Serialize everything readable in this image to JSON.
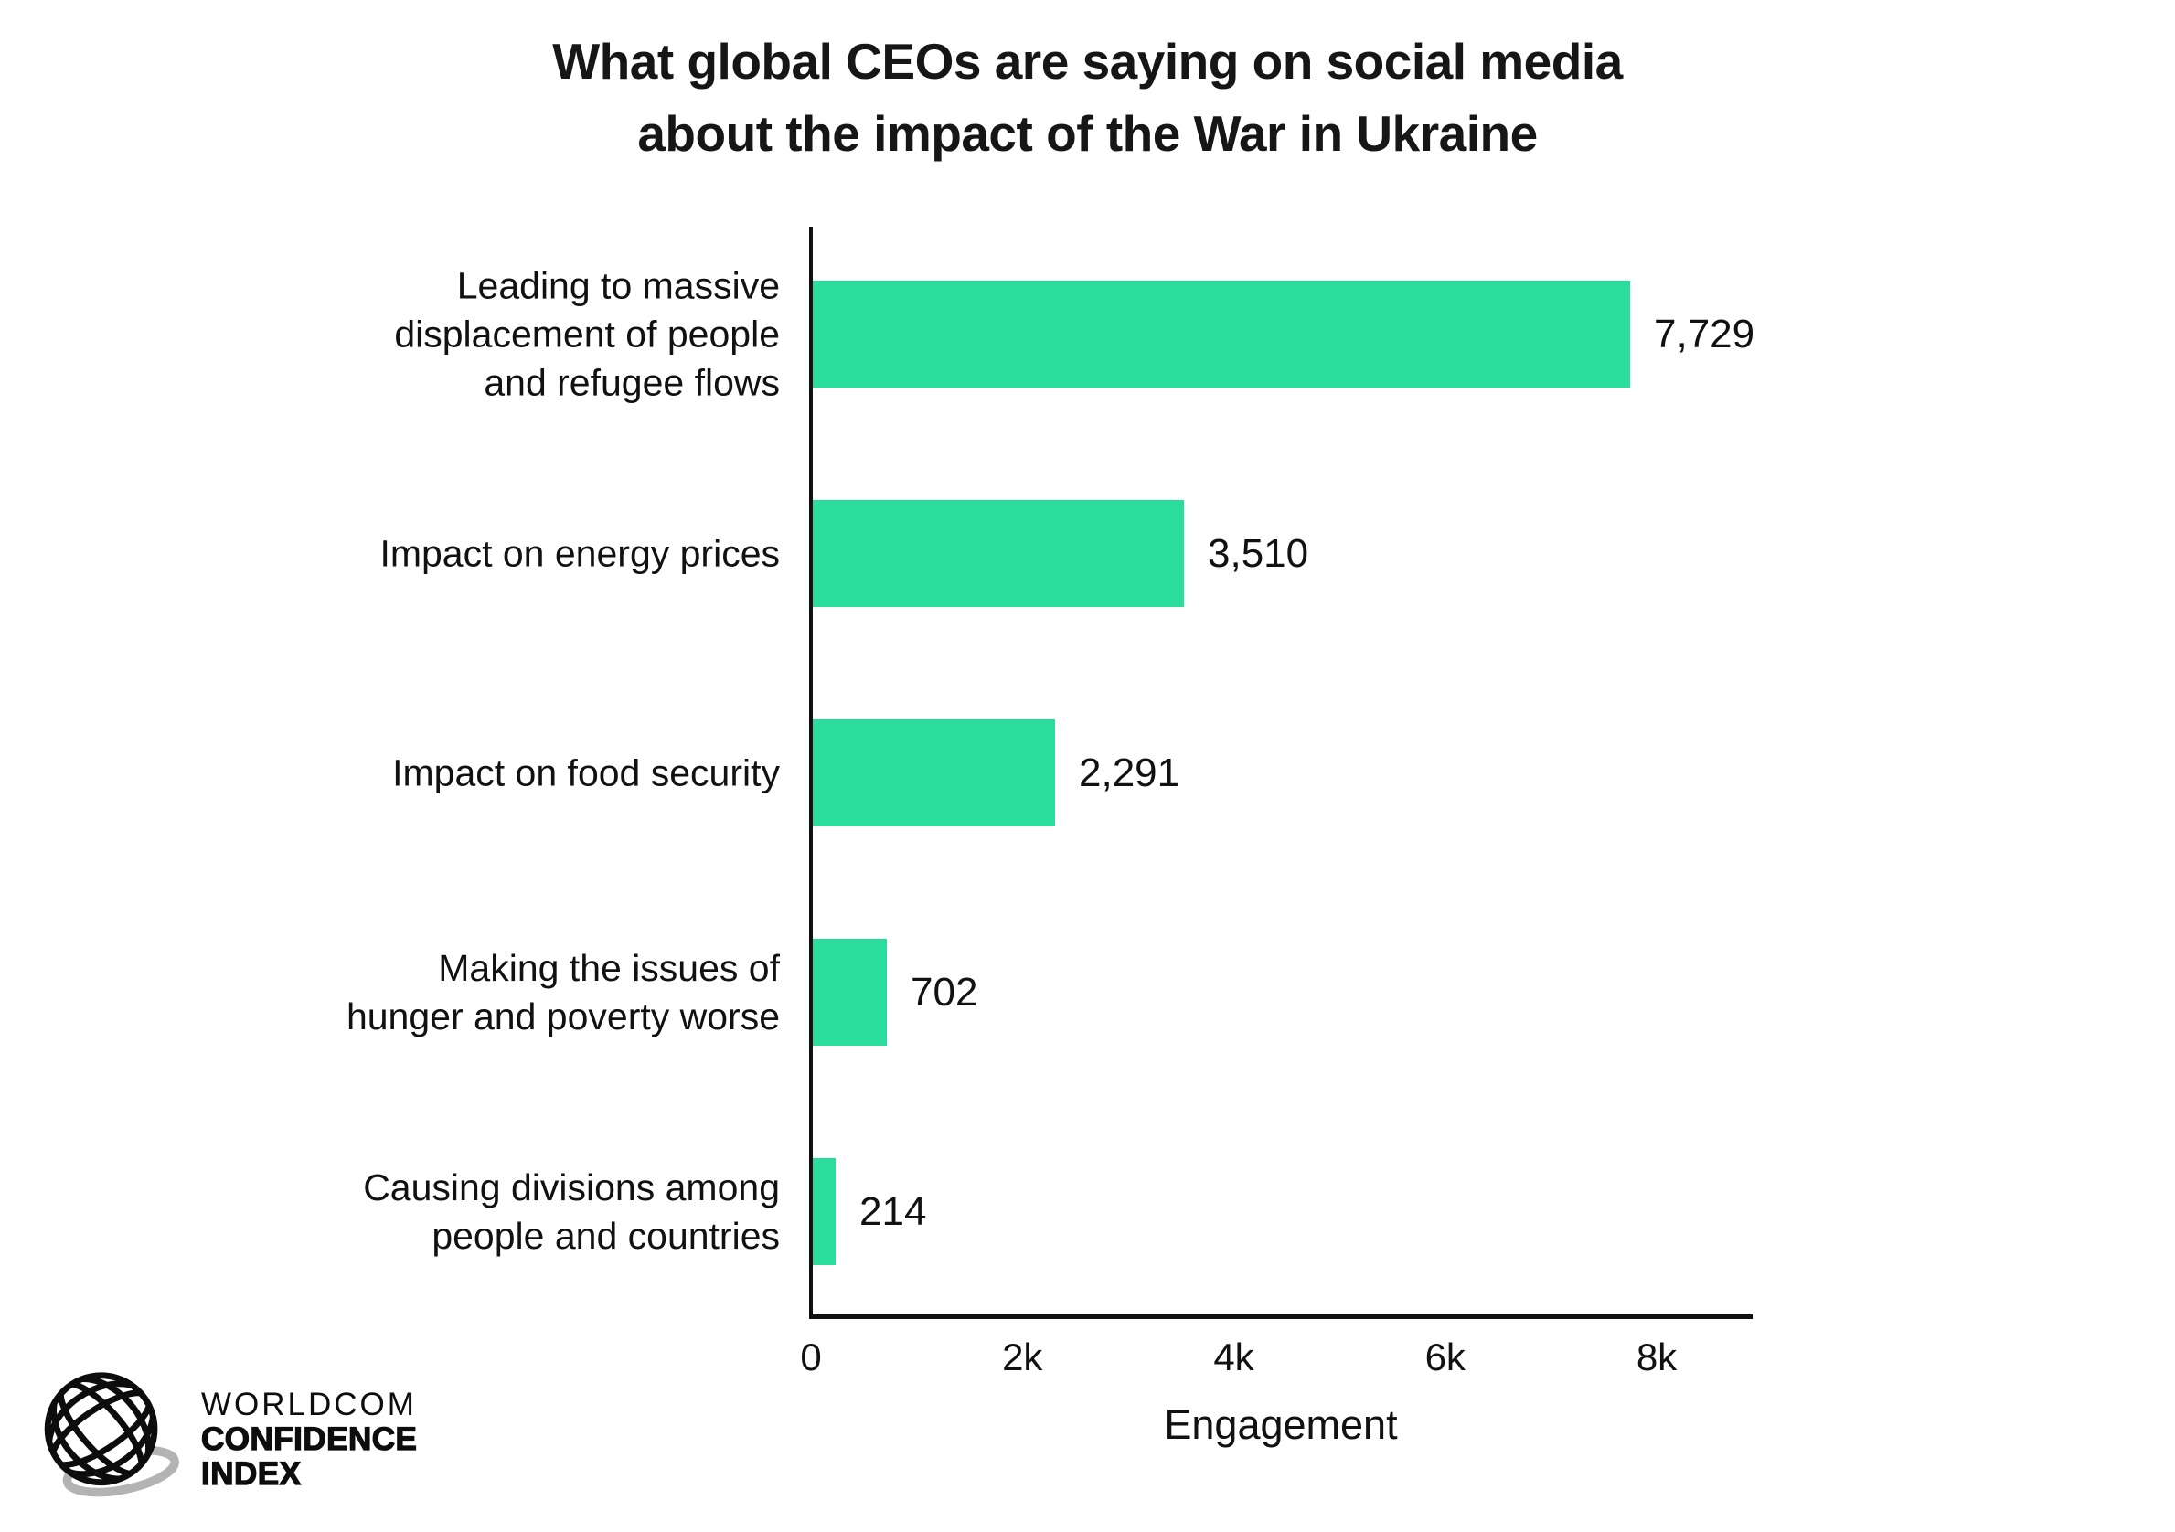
{
  "title": {
    "line1": "What global CEOs are saying on social media",
    "line2": "about the impact of the War in Ukraine"
  },
  "chart_data": {
    "type": "bar",
    "orientation": "horizontal",
    "title": "What global CEOs are saying on social media about the impact of the War in Ukraine",
    "categories": [
      "Leading to massive displacement of people and refugee flows",
      "Impact on energy prices",
      "Impact on food security",
      "Making the issues of hunger and poverty worse",
      "Causing divisions among people and countries"
    ],
    "category_lines": [
      [
        "Leading to massive",
        "displacement of people",
        "and refugee flows"
      ],
      [
        "Impact on energy prices"
      ],
      [
        "Impact on food security"
      ],
      [
        "Making the issues of",
        "hunger and poverty worse"
      ],
      [
        "Causing divisions among",
        "people and countries"
      ]
    ],
    "values": [
      7729,
      3510,
      2291,
      702,
      214
    ],
    "value_labels": [
      "7,729",
      "3,510",
      "2,291",
      "702",
      "214"
    ],
    "xlabel": "Engagement",
    "ylabel": "",
    "x_ticks": [
      "0",
      "2k",
      "4k",
      "6k",
      "8k"
    ],
    "x_tick_values": [
      0,
      2000,
      4000,
      6000,
      8000
    ],
    "xlim": [
      0,
      8000
    ],
    "bar_color": "#2ADD9C",
    "axis_color": "#111111",
    "grid": false,
    "legend": false
  },
  "logo": {
    "icon": "globe-wireframe-icon",
    "line1": "WORLDCOM",
    "line2": "CONFIDENCE",
    "line3": "INDEX"
  },
  "colors": {
    "background": "#FFFFFF",
    "bar": "#2ADD9C",
    "text": "#111111",
    "title_text": "#161616",
    "logo_shadow": "#B3B3B3"
  }
}
